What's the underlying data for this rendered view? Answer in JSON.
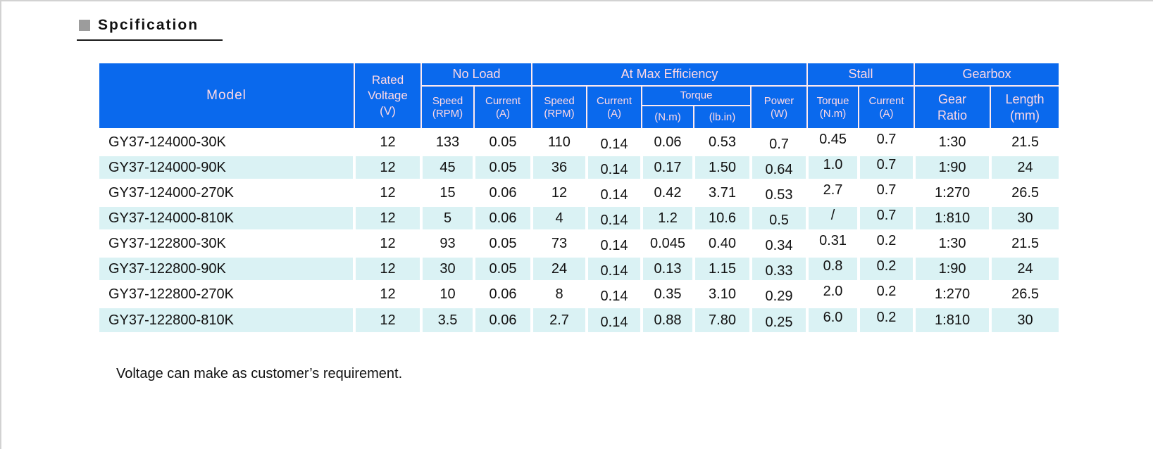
{
  "page": {
    "title": "Spcification",
    "note": "Voltage can make as customer’s requirement."
  },
  "colors": {
    "header-blue": "#0a69ed",
    "header-text": "#ffd9e4",
    "grid-line": "#fde9ee",
    "row-alt": "#daf2f4",
    "bullet-gray": "#9c9c9c"
  },
  "table": {
    "header": {
      "model": "Model",
      "rated_voltage": "Rated\nVoltage\n(V)",
      "no_load": "No Load",
      "at_max_efficiency": "At Max Efficiency",
      "stall": "Stall",
      "gearbox": "Gearbox",
      "nl_speed": "Speed\n(RPM)",
      "nl_current": "Current\n(A)",
      "me_speed": "Speed\n(RPM)",
      "me_current": "Current\n(A)",
      "me_torque": "Torque",
      "t_nm": "(N.m)",
      "t_lbin": "(lb.in)",
      "me_power": "Power\n(W)",
      "stall_torque": "Torque\n(N.m)",
      "stall_current": "Current\n(A)",
      "gear_ratio": "Gear\nRatio",
      "length": "Length\n(mm)"
    },
    "column_names": [
      "cell-model",
      "cell-rated-voltage",
      "cell-noload-speed-rpm",
      "cell-noload-current-a",
      "cell-maxeff-speed-rpm",
      "cell-maxeff-current-a",
      "cell-maxeff-torque-nm",
      "cell-maxeff-torque-lbin",
      "cell-maxeff-power-w",
      "cell-stall-torque-nm",
      "cell-stall-current-a",
      "cell-gear-ratio",
      "cell-gearbox-length-mm"
    ],
    "rows": [
      [
        "GY37-124000-30K",
        "12",
        "133",
        "0.05",
        "110",
        "0.14",
        "0.06",
        "0.53",
        "0.7",
        "0.45",
        "0.7",
        "1:30",
        "21.5"
      ],
      [
        "GY37-124000-90K",
        "12",
        "45",
        "0.05",
        "36",
        "0.14",
        "0.17",
        "1.50",
        "0.64",
        "1.0",
        "0.7",
        "1:90",
        "24"
      ],
      [
        "GY37-124000-270K",
        "12",
        "15",
        "0.06",
        "12",
        "0.14",
        "0.42",
        "3.71",
        "0.53",
        "2.7",
        "0.7",
        "1:270",
        "26.5"
      ],
      [
        "GY37-124000-810K",
        "12",
        "5",
        "0.06",
        "4",
        "0.14",
        "1.2",
        "10.6",
        "0.5",
        "/",
        "0.7",
        "1:810",
        "30"
      ],
      [
        "GY37-122800-30K",
        "12",
        "93",
        "0.05",
        "73",
        "0.14",
        "0.045",
        "0.40",
        "0.34",
        "0.31",
        "0.2",
        "1:30",
        "21.5"
      ],
      [
        "GY37-122800-90K",
        "12",
        "30",
        "0.05",
        "24",
        "0.14",
        "0.13",
        "1.15",
        "0.33",
        "0.8",
        "0.2",
        "1:90",
        "24"
      ],
      [
        "GY37-122800-270K",
        "12",
        "10",
        "0.06",
        "8",
        "0.14",
        "0.35",
        "3.10",
        "0.29",
        "2.0",
        "0.2",
        "1:270",
        "26.5"
      ],
      [
        "GY37-122800-810K",
        "12",
        "3.5",
        "0.06",
        "2.7",
        "0.14",
        "0.88",
        "7.80",
        "0.25",
        "6.0",
        "0.2",
        "1:810",
        "30"
      ]
    ]
  }
}
